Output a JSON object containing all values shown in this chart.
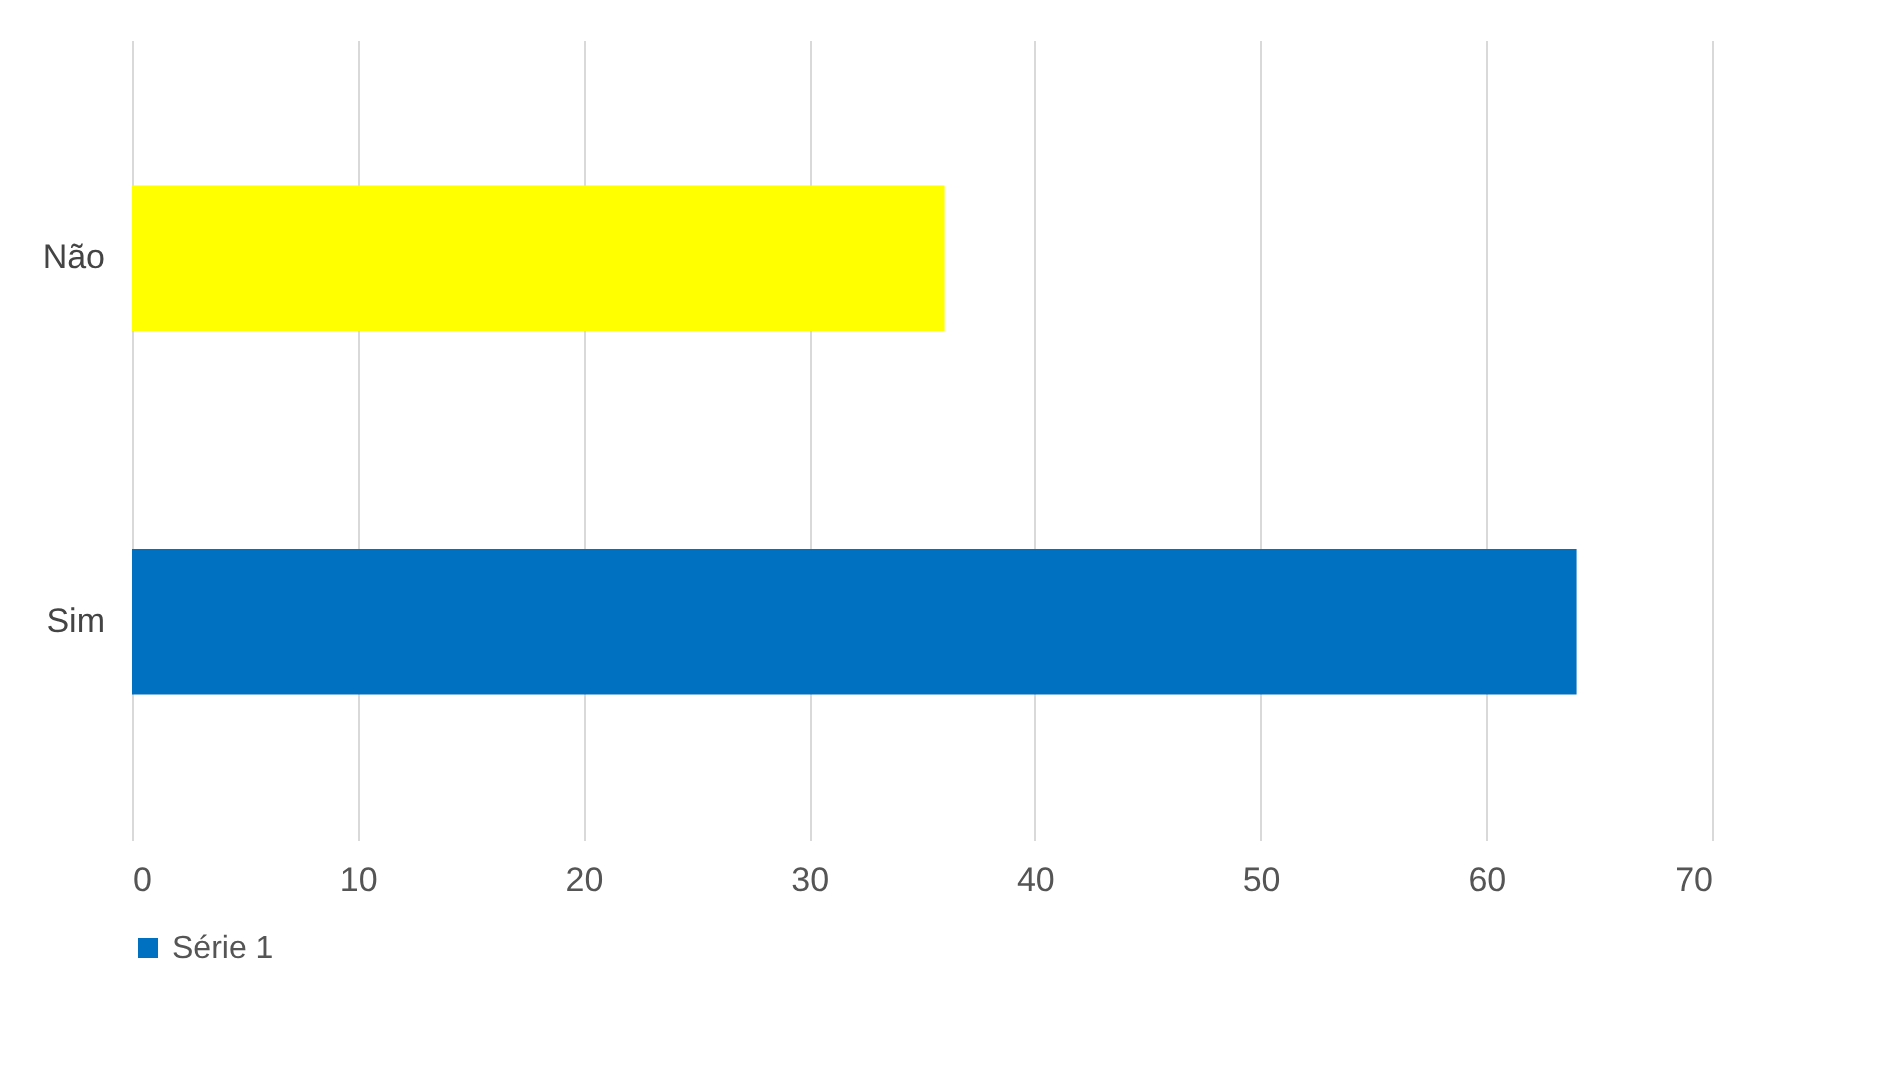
{
  "chart_data": {
    "type": "bar",
    "orientation": "horizontal",
    "categories": [
      "Não",
      "Sim"
    ],
    "series": [
      {
        "name": "Série 1",
        "color": "#0070c0",
        "colors": [
          "#ffff00",
          "#0070c0"
        ],
        "values": [
          36,
          64
        ]
      }
    ],
    "xlim": [
      0,
      70
    ],
    "xticks": [
      0,
      10,
      20,
      30,
      40,
      50,
      60,
      70
    ],
    "grid": "x",
    "legend": "bottom"
  }
}
